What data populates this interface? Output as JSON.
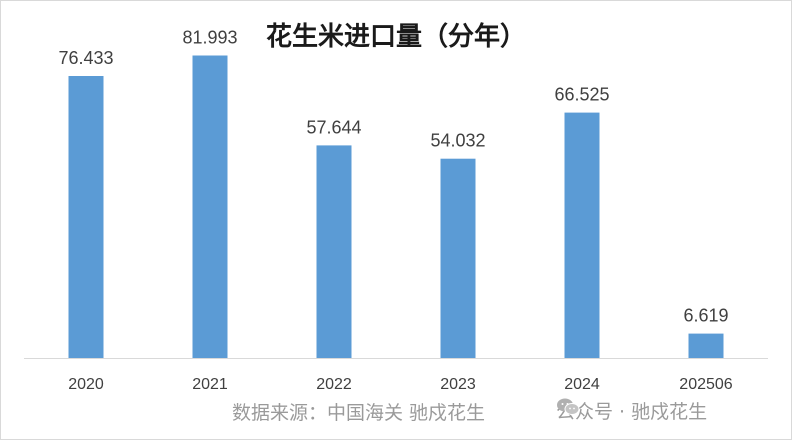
{
  "chart_data": {
    "type": "bar",
    "title": "花生米进口量（分年）",
    "categories": [
      "2020",
      "2021",
      "2022",
      "2023",
      "2024",
      "202506"
    ],
    "values": [
      76.433,
      81.993,
      57.644,
      54.032,
      66.525,
      6.619
    ],
    "value_labels": [
      "76.433",
      "81.993",
      "57.644",
      "54.032",
      "66.525",
      "6.619"
    ],
    "xlabel": "",
    "ylabel": "",
    "ylim": [
      0,
      90
    ],
    "grid": false,
    "legend": "none",
    "bar_color": "#5b9bd5"
  },
  "footer": {
    "source": "数据来源：中国海关  驰戍花生",
    "watermark": "公众号 · 驰戍花生"
  }
}
